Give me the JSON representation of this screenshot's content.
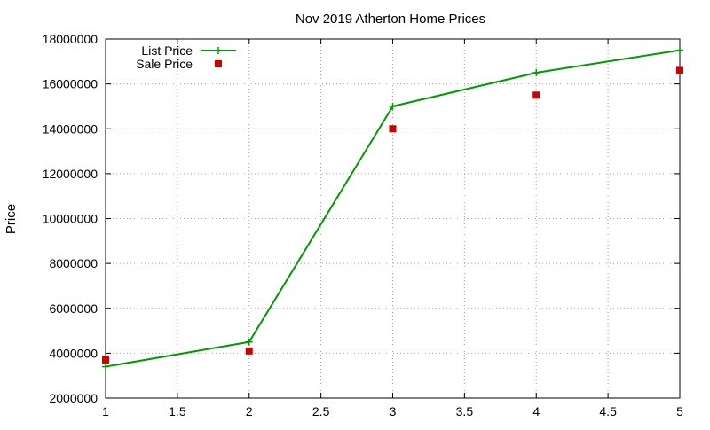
{
  "chart_data": {
    "type": "line",
    "title": "Nov 2019 Atherton Home Prices",
    "xlabel": "",
    "ylabel": "Price",
    "xlim": [
      1,
      5
    ],
    "ylim": [
      2000000,
      18000000
    ],
    "x_ticks": [
      "1",
      "1.5",
      "2",
      "2.5",
      "3",
      "3.5",
      "4",
      "4.5",
      "5"
    ],
    "y_ticks": [
      "2000000",
      "4000000",
      "6000000",
      "8000000",
      "10000000",
      "12000000",
      "14000000",
      "16000000",
      "18000000"
    ],
    "grid": true,
    "legend_position": "top-left",
    "series": [
      {
        "name": "List Price",
        "style": "line+points",
        "marker": "plus",
        "color": "#009900",
        "x": [
          1,
          2,
          3,
          4,
          5
        ],
        "y": [
          3400000,
          4500000,
          15000000,
          16500000,
          17500000
        ]
      },
      {
        "name": "Sale Price",
        "style": "points",
        "marker": "square",
        "color": "#cc0000",
        "x": [
          1,
          2,
          3,
          4,
          5
        ],
        "y": [
          3700000,
          4100000,
          14000000,
          15500000,
          16600000
        ]
      }
    ]
  }
}
